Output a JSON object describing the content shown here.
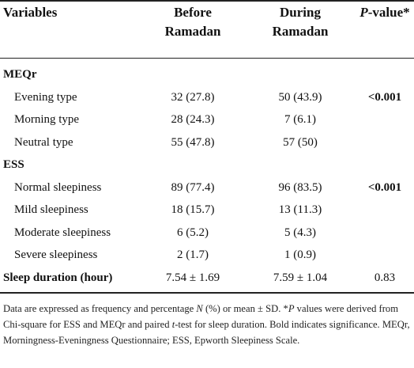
{
  "headers": {
    "variables": "Variables",
    "before": [
      "Before",
      "Ramadan"
    ],
    "during": [
      "During",
      "Ramadan"
    ],
    "p_italic": "P",
    "p_rest": "-value*"
  },
  "rows": [
    {
      "label": "MEQr",
      "type": "section",
      "before": "",
      "during": "",
      "p": ""
    },
    {
      "label": "Evening type",
      "type": "item",
      "before": "32 (27.8)",
      "during": "50 (43.9)",
      "p": "<0.001",
      "p_bold": true
    },
    {
      "label": "Morning type",
      "type": "item",
      "before": "28 (24.3)",
      "during": "7 (6.1)",
      "p": ""
    },
    {
      "label": "Neutral type",
      "type": "item",
      "before": "55 (47.8)",
      "during": "57 (50)",
      "p": ""
    },
    {
      "label": "ESS",
      "type": "section",
      "before": "",
      "during": "",
      "p": ""
    },
    {
      "label": "Normal sleepiness",
      "type": "item",
      "before": "89 (77.4)",
      "during": "96 (83.5)",
      "p": "<0.001",
      "p_bold": true
    },
    {
      "label": "Mild sleepiness",
      "type": "item",
      "before": "18 (15.7)",
      "during": "13 (11.3)",
      "p": ""
    },
    {
      "label": "Moderate sleepiness",
      "type": "item",
      "before": "6 (5.2)",
      "during": "5 (4.3)",
      "p": ""
    },
    {
      "label": "Severe sleepiness",
      "type": "item",
      "before": "2 (1.7)",
      "during": "1 (0.9)",
      "p": ""
    },
    {
      "label": "Sleep duration (hour)",
      "type": "total",
      "before": "7.54 ± 1.69",
      "during": "7.59 ± 1.04",
      "p": "0.83"
    }
  ],
  "footnote": {
    "line1_a": "Data are expressed as frequency and percentage ",
    "line1_n": "N",
    "line1_b": " (%) or mean ± SD. *",
    "line1_p": "P",
    "line1_c": " values were derived from Chi-square for ESS and MEQr and paired ",
    "line1_t": "t",
    "line1_d": "-test for sleep duration. Bold indicates significance. MEQr, Morningness-Eveningness Questionnaire; ESS, Epworth Sleepiness Scale."
  }
}
